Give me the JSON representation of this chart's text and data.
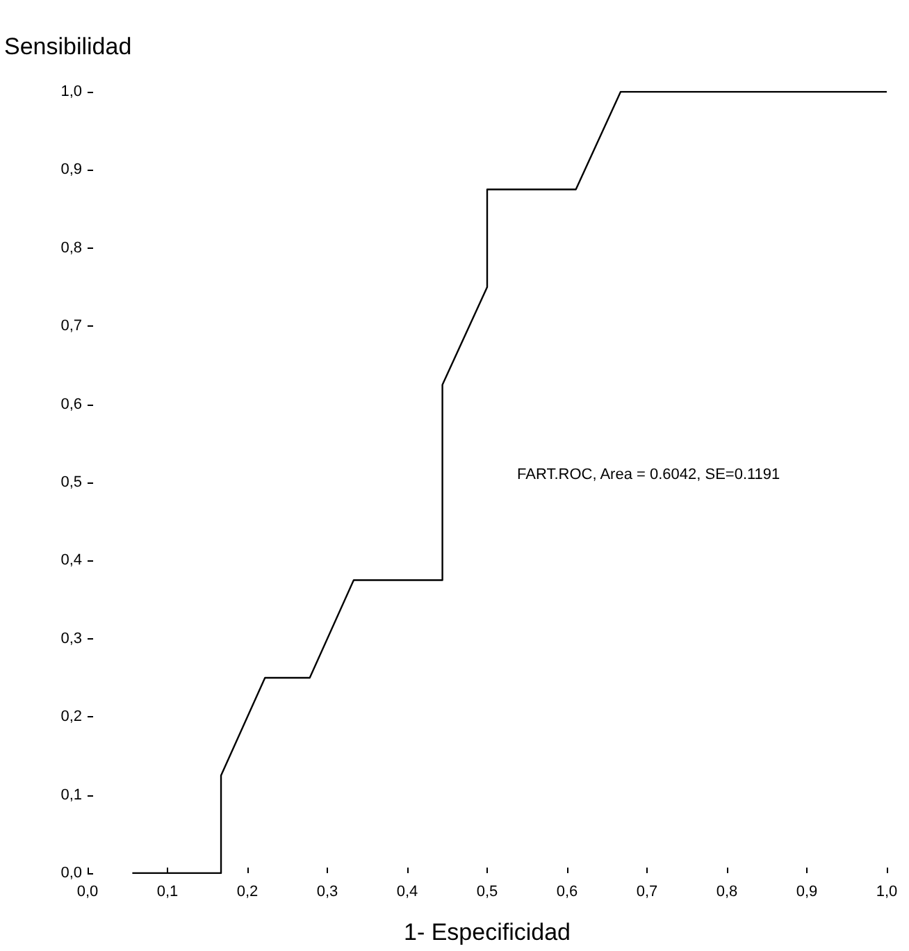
{
  "chart_data": {
    "type": "line",
    "xlabel": "1- Especificidad",
    "ylabel": "Sensibilidad",
    "annotations": [
      "FART.ROC, Area = 0.6042, SE=0.1191"
    ],
    "x": [
      0.056,
      0.167,
      0.167,
      0.222,
      0.278,
      0.333,
      0.444,
      0.444,
      0.5,
      0.5,
      0.611,
      0.667,
      1.0
    ],
    "series": [
      {
        "color": "#000000",
        "values": [
          0,
          0,
          0.125,
          0.25,
          0.25,
          0.375,
          0.375,
          0.625,
          0.75,
          0.875,
          0.875,
          1.0,
          1.0
        ]
      }
    ],
    "xlim": [
      0,
      1
    ],
    "ylim": [
      0,
      1
    ],
    "xticks": [
      {
        "value": 0,
        "label": "0,0"
      },
      {
        "value": 0.1,
        "label": "0,1"
      },
      {
        "value": 0.2,
        "label": "0,2"
      },
      {
        "value": 0.3,
        "label": "0,3"
      },
      {
        "value": 0.4,
        "label": "0,4"
      },
      {
        "value": 0.5,
        "label": "0,5"
      },
      {
        "value": 0.6,
        "label": "0,6"
      },
      {
        "value": 0.7,
        "label": "0,7"
      },
      {
        "value": 0.8,
        "label": "0,8"
      },
      {
        "value": 0.9,
        "label": "0,9"
      },
      {
        "value": 1,
        "label": "1,0"
      }
    ],
    "yticks": [
      {
        "value": 0,
        "label": "0,0"
      },
      {
        "value": 0.1,
        "label": "0,1"
      },
      {
        "value": 0.2,
        "label": "0,2"
      },
      {
        "value": 0.3,
        "label": "0,3"
      },
      {
        "value": 0.4,
        "label": "0,4"
      },
      {
        "value": 0.5,
        "label": "0,5"
      },
      {
        "value": 0.6,
        "label": "0,6"
      },
      {
        "value": 0.7,
        "label": "0,7"
      },
      {
        "value": 0.8,
        "label": "0,8"
      },
      {
        "value": 0.9,
        "label": "0,9"
      },
      {
        "value": 1,
        "label": "1,0"
      }
    ],
    "marker": "none",
    "line_style": "solid"
  }
}
